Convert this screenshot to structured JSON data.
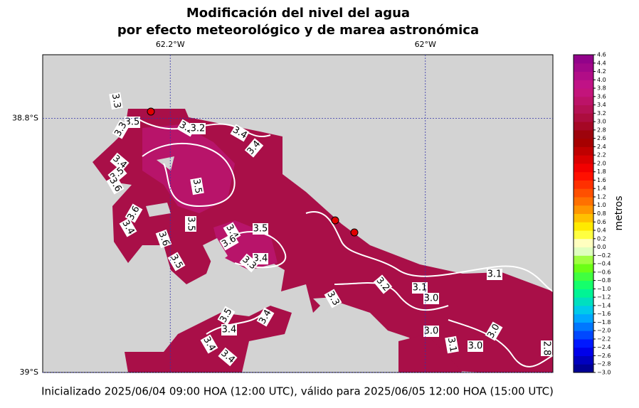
{
  "chart_data": {
    "type": "map",
    "title": [
      "Modificación del nivel del agua",
      "por efecto meteorológico y de marea astronómica"
    ],
    "footer": "Inicializado 2025/06/04 09:00 HOA (12:00 UTC), válido para 2025/06/05 12:00 HOA (15:00 UTC)",
    "xlim": [
      -62.3,
      -61.9
    ],
    "ylim": [
      -39,
      -38.75
    ],
    "xticks": [
      {
        "value": -62.2,
        "label": "62.2°W"
      },
      {
        "value": -62,
        "label": "62°W"
      }
    ],
    "yticks": [
      {
        "value": -38.8,
        "label": "38.8°S"
      },
      {
        "value": -39,
        "label": "39°S"
      }
    ],
    "grid": true,
    "colorbar": {
      "label": "metros",
      "clim": [
        -3,
        4.6
      ],
      "colormap": [
        [
          -3,
          "#000080"
        ],
        [
          -2.4,
          "#0000ff"
        ],
        [
          -1.6,
          "#00bfff"
        ],
        [
          -1,
          "#00ff80"
        ],
        [
          -0.4,
          "#80ff00"
        ],
        [
          0,
          "#ffffff"
        ],
        [
          0.4,
          "#ffff00"
        ],
        [
          1,
          "#ff8000"
        ],
        [
          1.8,
          "#ff0000"
        ],
        [
          2.6,
          "#990000"
        ],
        [
          3.2,
          "#b0104a"
        ],
        [
          3.8,
          "#c71585"
        ],
        [
          4.6,
          "#8b008b"
        ]
      ],
      "ticks": [
        {
          "value": 4.6,
          "label": "4.6"
        },
        {
          "value": 4.4,
          "label": "4.4"
        },
        {
          "value": 4.2,
          "label": "4.2"
        },
        {
          "value": 4,
          "label": "4.0"
        },
        {
          "value": 3.8,
          "label": "3.8"
        },
        {
          "value": 3.6,
          "label": "3.6"
        },
        {
          "value": 3.4,
          "label": "3.4"
        },
        {
          "value": 3.2,
          "label": "3.2"
        },
        {
          "value": 3,
          "label": "3.0"
        },
        {
          "value": 2.8,
          "label": "2.8"
        },
        {
          "value": 2.6,
          "label": "2.6"
        },
        {
          "value": 2.4,
          "label": "2.4"
        },
        {
          "value": 2.2,
          "label": "2.2"
        },
        {
          "value": 2,
          "label": "2.0"
        },
        {
          "value": 1.8,
          "label": "1.8"
        },
        {
          "value": 1.6,
          "label": "1.6"
        },
        {
          "value": 1.4,
          "label": "1.4"
        },
        {
          "value": 1.2,
          "label": "1.2"
        },
        {
          "value": 1,
          "label": "1.0"
        },
        {
          "value": 0.8,
          "label": "0.8"
        },
        {
          "value": 0.6,
          "label": "0.6"
        },
        {
          "value": 0.4,
          "label": "0.4"
        },
        {
          "value": 0.2,
          "label": "0.2"
        },
        {
          "value": 0,
          "label": "0.0"
        },
        {
          "value": -0.2,
          "label": "−0.2"
        },
        {
          "value": -0.4,
          "label": "−0.4"
        },
        {
          "value": -0.6,
          "label": "−0.6"
        },
        {
          "value": -0.8,
          "label": "−0.8"
        },
        {
          "value": -1,
          "label": "−1.0"
        },
        {
          "value": -1.2,
          "label": "−1.2"
        },
        {
          "value": -1.4,
          "label": "−1.4"
        },
        {
          "value": -1.6,
          "label": "−1.6"
        },
        {
          "value": -1.8,
          "label": "−1.8"
        },
        {
          "value": -2,
          "label": "−2.0"
        },
        {
          "value": -2.2,
          "label": "−2.2"
        },
        {
          "value": -2.4,
          "label": "−2.4"
        },
        {
          "value": -2.6,
          "label": "−2.6"
        },
        {
          "value": -2.8,
          "label": "−2.8"
        },
        {
          "value": -3,
          "label": "−3.0"
        }
      ]
    },
    "contour_labels": [
      "3.3",
      "3.5",
      "3.3",
      "3.2",
      "3.2",
      "3.4",
      "3.4",
      "3.4",
      "3.5",
      "3.6",
      "3.5",
      "3.6",
      "3.5",
      "3.4",
      "3.6",
      "3.4",
      "3.5",
      "3.6",
      "3.5",
      "3.4",
      "3.3",
      "3.2",
      "3.1",
      "3.0",
      "3.1",
      "3.0",
      "3.0",
      "3.1",
      "3.0",
      "2.8",
      "3.5",
      "3.4",
      "3.4",
      "3.4",
      "3.4",
      "3.3"
    ]
  }
}
